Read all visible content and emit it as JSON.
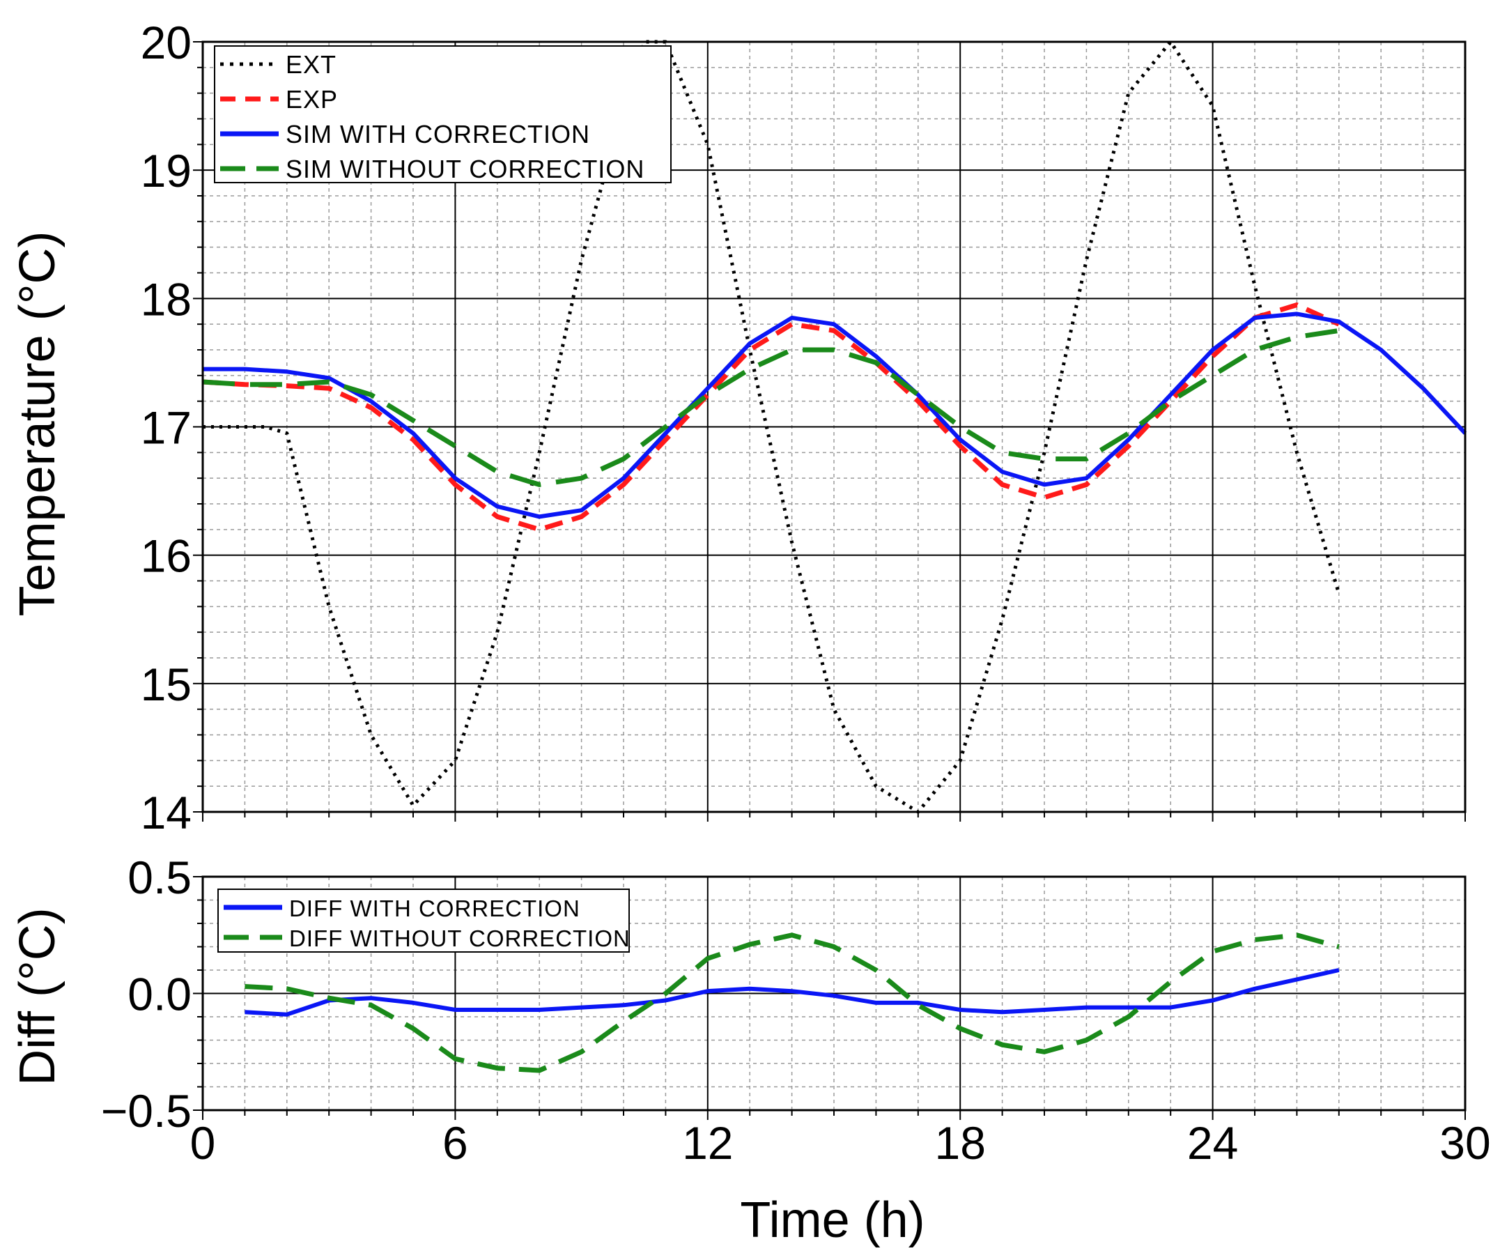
{
  "chart_data": [
    {
      "type": "line",
      "panel": "top",
      "xlabel": "Time (h)",
      "ylabel": "Temperature (°C)",
      "xlim": [
        0,
        30
      ],
      "ylim": [
        14,
        20
      ],
      "yticks": [
        "14",
        "15",
        "16",
        "17",
        "18",
        "19",
        "20"
      ],
      "grid": true,
      "legend_position": "top-left",
      "series": [
        {
          "name": "EXT",
          "color": "#000000",
          "style": "dotted",
          "x": [
            0,
            1,
            1.5,
            2,
            3,
            4,
            5,
            6,
            7,
            8,
            9,
            10,
            10.5,
            11,
            12,
            13,
            14,
            15,
            16,
            17,
            18,
            19,
            20,
            21,
            22,
            23,
            24,
            25,
            26,
            27
          ],
          "y": [
            17,
            17,
            17,
            16.95,
            15.6,
            14.6,
            14.05,
            14.4,
            15.4,
            16.8,
            18.3,
            19.5,
            20,
            20,
            19.2,
            17.6,
            16.1,
            14.8,
            14.2,
            14.0,
            14.4,
            15.5,
            16.8,
            18.3,
            19.6,
            20.0,
            19.5,
            18.1,
            16.8,
            15.7
          ]
        },
        {
          "name": "EXP",
          "color": "#ff1a1a",
          "style": "dashed",
          "x": [
            0,
            1,
            2,
            3,
            4,
            5,
            6,
            7,
            8,
            9,
            10,
            11,
            12,
            13,
            14,
            15,
            16,
            17,
            18,
            19,
            20,
            21,
            22,
            23,
            24,
            25,
            26,
            27
          ],
          "y": [
            17.35,
            17.33,
            17.32,
            17.3,
            17.15,
            16.9,
            16.55,
            16.3,
            16.2,
            16.3,
            16.55,
            16.9,
            17.25,
            17.6,
            17.8,
            17.75,
            17.5,
            17.2,
            16.85,
            16.55,
            16.45,
            16.55,
            16.85,
            17.2,
            17.55,
            17.85,
            17.95,
            17.8
          ]
        },
        {
          "name": "SIM WITH CORRECTION",
          "color": "#0a16f5",
          "style": "solid",
          "x": [
            0,
            1,
            2,
            3,
            4,
            5,
            6,
            7,
            8,
            9,
            10,
            11,
            12,
            13,
            14,
            15,
            16,
            17,
            18,
            19,
            20,
            21,
            22,
            23,
            24,
            25,
            26,
            27,
            28,
            29,
            30
          ],
          "y": [
            17.45,
            17.45,
            17.43,
            17.38,
            17.2,
            16.95,
            16.6,
            16.38,
            16.3,
            16.35,
            16.6,
            16.95,
            17.3,
            17.65,
            17.85,
            17.8,
            17.55,
            17.25,
            16.9,
            16.65,
            16.55,
            16.6,
            16.9,
            17.25,
            17.6,
            17.85,
            17.88,
            17.82,
            17.6,
            17.3,
            16.95
          ]
        },
        {
          "name": "SIM WITHOUT CORRECTION",
          "color": "#1a8a1a",
          "style": "longdash",
          "x": [
            0,
            1,
            2,
            3,
            4,
            5,
            6,
            7,
            8,
            9,
            10,
            11,
            12,
            13,
            14,
            15,
            16,
            17,
            18,
            19,
            20,
            21,
            22,
            23,
            24,
            25,
            26,
            27
          ],
          "y": [
            17.35,
            17.33,
            17.33,
            17.35,
            17.25,
            17.05,
            16.85,
            16.65,
            16.55,
            16.6,
            16.75,
            17.0,
            17.25,
            17.45,
            17.6,
            17.6,
            17.5,
            17.25,
            17.0,
            16.8,
            16.75,
            16.75,
            16.95,
            17.2,
            17.4,
            17.6,
            17.7,
            17.75
          ]
        }
      ]
    },
    {
      "type": "line",
      "panel": "bottom",
      "xlabel": "Time (h)",
      "ylabel": "Diff (°C)",
      "xlim": [
        0,
        30
      ],
      "ylim": [
        -0.5,
        0.5
      ],
      "xticks": [
        "0",
        "6",
        "12",
        "18",
        "24",
        "30"
      ],
      "yticks": [
        "−0.5",
        "0.0",
        "0.5"
      ],
      "grid": true,
      "legend_position": "top-left",
      "series": [
        {
          "name": "DIFF WITH CORRECTION",
          "color": "#0a16f5",
          "style": "solid",
          "x": [
            1,
            2,
            3,
            4,
            5,
            6,
            7,
            8,
            9,
            10,
            11,
            12,
            13,
            14,
            15,
            16,
            17,
            18,
            19,
            20,
            21,
            22,
            23,
            24,
            25,
            26,
            27
          ],
          "y": [
            -0.08,
            -0.09,
            -0.03,
            -0.02,
            -0.04,
            -0.07,
            -0.07,
            -0.07,
            -0.06,
            -0.05,
            -0.03,
            0.01,
            0.02,
            0.01,
            -0.01,
            -0.04,
            -0.04,
            -0.07,
            -0.08,
            -0.07,
            -0.06,
            -0.06,
            -0.06,
            -0.03,
            0.02,
            0.06,
            0.1
          ]
        },
        {
          "name": "DIFF WITHOUT CORRECTION",
          "color": "#1a8a1a",
          "style": "longdash",
          "x": [
            1,
            2,
            3,
            4,
            5,
            6,
            7,
            8,
            9,
            10,
            11,
            12,
            13,
            14,
            15,
            16,
            17,
            18,
            19,
            20,
            21,
            22,
            23,
            24,
            25,
            26,
            27
          ],
          "y": [
            0.03,
            0.02,
            -0.02,
            -0.05,
            -0.15,
            -0.28,
            -0.32,
            -0.33,
            -0.25,
            -0.12,
            0.0,
            0.15,
            0.21,
            0.25,
            0.2,
            0.1,
            -0.05,
            -0.15,
            -0.22,
            -0.25,
            -0.2,
            -0.1,
            0.05,
            0.18,
            0.23,
            0.25,
            0.2
          ]
        }
      ]
    }
  ]
}
